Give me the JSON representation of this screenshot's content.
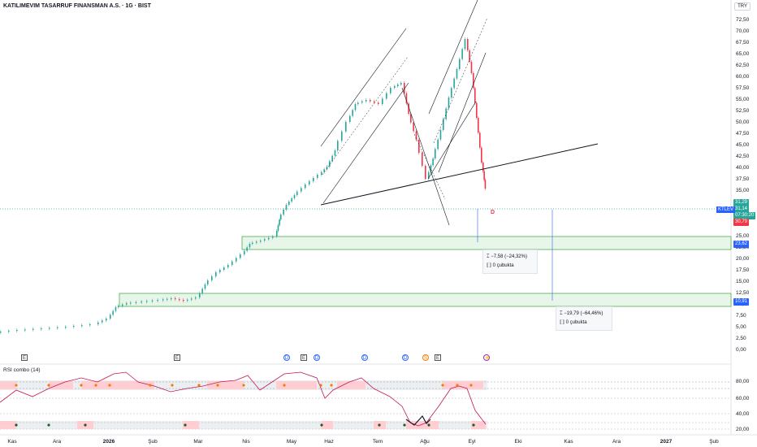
{
  "header": {
    "title": "KATILIMEVIM TASARRUF FINANSMAN A.S. · 1G · BIST",
    "currency": "TRY"
  },
  "price_axis": {
    "labels": [
      "72,50",
      "70,00",
      "67,50",
      "65,00",
      "62,50",
      "60,00",
      "57,50",
      "55,00",
      "52,50",
      "50,00",
      "47,50",
      "45,00",
      "42,50",
      "40,00",
      "37,50",
      "35,00",
      "25,00",
      "22,50",
      "20,00",
      "17,50",
      "15,00",
      "12,50",
      "10,00",
      "7,50",
      "5,00",
      "2,50",
      "0,00"
    ],
    "badges": [
      {
        "text": "31,29",
        "color": "#26a69a"
      },
      {
        "text": "31,14",
        "color": "#26a69a"
      },
      {
        "text": "07:30:20",
        "color": "#26a69a"
      },
      {
        "text": "30,79",
        "color": "#f23645"
      },
      {
        "text": "23,62",
        "color": "#2962ff"
      },
      {
        "text": "10,91",
        "color": "#2962ff"
      }
    ],
    "ticker": "KTLEV"
  },
  "rsi_axis": {
    "labels": [
      "80,00",
      "60,00",
      "40,00",
      "20,00"
    ]
  },
  "time_axis": {
    "labels": [
      "Kas",
      "Ara",
      "2026",
      "Şub",
      "Mar",
      "Nis",
      "May",
      "Haz",
      "Tem",
      "Ağu",
      "Eyl",
      "Eki",
      "Kas",
      "Ara",
      "2027",
      "Şub"
    ]
  },
  "events": [
    {
      "type": "e",
      "text": "E"
    },
    {
      "type": "e",
      "text": "E"
    },
    {
      "type": "d",
      "text": "D"
    },
    {
      "type": "e",
      "text": "E"
    },
    {
      "type": "d",
      "text": "D"
    },
    {
      "type": "d",
      "text": "D"
    },
    {
      "type": "d",
      "text": "D"
    },
    {
      "type": "s",
      "text": "S"
    },
    {
      "type": "e",
      "text": "E"
    },
    {
      "type": "f",
      "text": "⚡"
    }
  ],
  "measures": [
    {
      "change": "−7,58 (−24,32%)",
      "bars": "0 çubukta"
    },
    {
      "change": "−19,79 (−64,46%)",
      "bars": "0 çubukta"
    }
  ],
  "dividend_marker": "D",
  "indicator": {
    "title": "RSI combo (14)"
  },
  "colors": {
    "up": "#26a69a",
    "down": "#f23645",
    "zone": "#4caf50",
    "rsi": "#c2185b",
    "channel": "#131722"
  }
}
